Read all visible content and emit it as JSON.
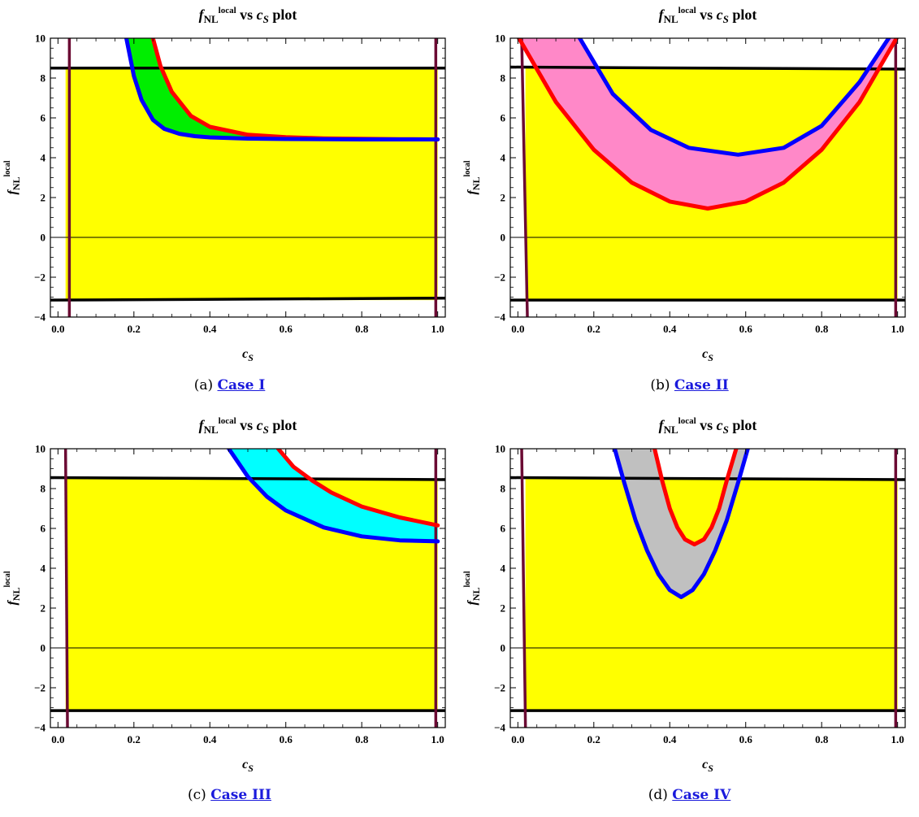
{
  "chart_data": [
    {
      "type": "line",
      "title": "f_NL^local vs c_S plot",
      "xlabel": "c_S",
      "ylabel": "f_NL^local",
      "xlim": [
        -0.02,
        1.02
      ],
      "ylim": [
        -4,
        10
      ],
      "x_ticks": [
        "0.0",
        "0.2",
        "0.4",
        "0.6",
        "0.8",
        "1.0"
      ],
      "y_ticks": [
        "−4",
        "−2",
        "0",
        "2",
        "4",
        "6",
        "8",
        "10"
      ],
      "allowed_region": {
        "x": [
          0.02,
          1.0
        ],
        "y": [
          -3.15,
          8.5
        ],
        "color": "#ffff00"
      },
      "horizontal_bounds": [
        {
          "x": [
            -0.02,
            1.02
          ],
          "y": [
            8.5,
            8.5
          ]
        },
        {
          "x": [
            -0.02,
            1.02
          ],
          "y": [
            -3.15,
            -3.05
          ]
        }
      ],
      "vertical_bounds": [
        {
          "x": [
            0.03,
            0.03
          ],
          "y": [
            -4,
            10
          ]
        },
        {
          "x": [
            0.995,
            0.995
          ],
          "y": [
            -4,
            10
          ]
        }
      ],
      "band_color": "#00ee00",
      "series": [
        {
          "color": "#ff0000",
          "x": [
            0.25,
            0.27,
            0.3,
            0.35,
            0.4,
            0.5,
            0.6,
            0.7,
            0.8,
            0.9,
            1.0
          ],
          "y": [
            10,
            8.6,
            7.3,
            6.1,
            5.55,
            5.15,
            5.03,
            4.97,
            4.95,
            4.93,
            4.92
          ]
        },
        {
          "color": "#0000ff",
          "x": [
            0.18,
            0.2,
            0.22,
            0.25,
            0.28,
            0.32,
            0.36,
            0.4,
            0.5,
            0.6,
            0.8,
            1.0
          ],
          "y": [
            10,
            8.1,
            6.9,
            5.9,
            5.45,
            5.2,
            5.08,
            5.02,
            4.96,
            4.94,
            4.92,
            4.92
          ]
        }
      ]
    },
    {
      "type": "line",
      "title": "f_NL^local vs c_S plot",
      "xlabel": "c_S",
      "ylabel": "f_NL^local",
      "xlim": [
        -0.02,
        1.02
      ],
      "ylim": [
        -4,
        10
      ],
      "x_ticks": [
        "0.0",
        "0.2",
        "0.4",
        "0.6",
        "0.8",
        "1.0"
      ],
      "y_ticks": [
        "−4",
        "−2",
        "0",
        "2",
        "4",
        "6",
        "8",
        "10"
      ],
      "allowed_region": {
        "x": [
          0.02,
          1.0
        ],
        "y": [
          -3.15,
          8.5
        ],
        "color": "#ffff00"
      },
      "horizontal_bounds": [
        {
          "x": [
            -0.02,
            1.02
          ],
          "y": [
            8.55,
            8.45
          ]
        },
        {
          "x": [
            -0.02,
            1.02
          ],
          "y": [
            -3.15,
            -3.15
          ]
        }
      ],
      "vertical_bounds": [
        {
          "x": [
            0.01,
            0.025
          ],
          "y": [
            10,
            -4
          ]
        },
        {
          "x": [
            0.995,
            0.995
          ],
          "y": [
            -4,
            10
          ]
        }
      ],
      "band_color": "#ff88c8",
      "series": [
        {
          "color": "#ff0000",
          "x": [
            0.0,
            0.1,
            0.2,
            0.3,
            0.4,
            0.5,
            0.6,
            0.7,
            0.8,
            0.9,
            1.0
          ],
          "y": [
            10.1,
            6.8,
            4.4,
            2.75,
            1.8,
            1.45,
            1.8,
            2.75,
            4.4,
            6.8,
            10.1
          ]
        },
        {
          "color": "#0000ff",
          "x": [
            0.16,
            0.25,
            0.35,
            0.45,
            0.58,
            0.7,
            0.8,
            0.9,
            0.98
          ],
          "y": [
            10.1,
            7.2,
            5.4,
            4.5,
            4.15,
            4.5,
            5.6,
            7.8,
            10.1
          ]
        }
      ]
    },
    {
      "type": "line",
      "title": "f_NL^local vs c_S plot",
      "xlabel": "c_S",
      "ylabel": "f_NL^local",
      "xlim": [
        -0.02,
        1.02
      ],
      "ylim": [
        -4,
        10
      ],
      "x_ticks": [
        "0.0",
        "0.2",
        "0.4",
        "0.6",
        "0.8",
        "1.0"
      ],
      "y_ticks": [
        "−4",
        "−2",
        "0",
        "2",
        "4",
        "6",
        "8",
        "10"
      ],
      "allowed_region": {
        "x": [
          0.02,
          1.0
        ],
        "y": [
          -3.15,
          8.5
        ],
        "color": "#ffff00"
      },
      "horizontal_bounds": [
        {
          "x": [
            -0.02,
            1.02
          ],
          "y": [
            8.55,
            8.45
          ]
        },
        {
          "x": [
            -0.02,
            1.02
          ],
          "y": [
            -3.15,
            -3.15
          ]
        }
      ],
      "vertical_bounds": [
        {
          "x": [
            0.02,
            0.025
          ],
          "y": [
            10,
            -4
          ]
        },
        {
          "x": [
            0.995,
            0.995
          ],
          "y": [
            -4,
            10
          ]
        }
      ],
      "band_color": "#00ffff",
      "series": [
        {
          "color": "#ff0000",
          "x": [
            0.58,
            0.62,
            0.67,
            0.72,
            0.8,
            0.9,
            1.0
          ],
          "y": [
            10,
            9.1,
            8.4,
            7.8,
            7.1,
            6.55,
            6.15
          ]
        },
        {
          "color": "#0000ff",
          "x": [
            0.45,
            0.5,
            0.55,
            0.6,
            0.7,
            0.8,
            0.9,
            1.0
          ],
          "y": [
            10,
            8.6,
            7.6,
            6.9,
            6.05,
            5.6,
            5.4,
            5.35
          ]
        }
      ]
    },
    {
      "type": "line",
      "title": "f_NL^local vs c_S plot",
      "xlabel": "c_S",
      "ylabel": "f_NL^local",
      "xlim": [
        -0.02,
        1.02
      ],
      "ylim": [
        -4,
        10
      ],
      "x_ticks": [
        "0.0",
        "0.2",
        "0.4",
        "0.6",
        "0.8",
        "1.0"
      ],
      "y_ticks": [
        "−4",
        "−2",
        "0",
        "2",
        "4",
        "6",
        "8",
        "10"
      ],
      "allowed_region": {
        "x": [
          0.02,
          1.0
        ],
        "y": [
          -3.15,
          8.5
        ],
        "color": "#ffff00"
      },
      "horizontal_bounds": [
        {
          "x": [
            -0.02,
            1.02
          ],
          "y": [
            8.55,
            8.45
          ]
        },
        {
          "x": [
            -0.02,
            1.02
          ],
          "y": [
            -3.15,
            -3.15
          ]
        }
      ],
      "vertical_bounds": [
        {
          "x": [
            0.01,
            0.02
          ],
          "y": [
            10,
            -4
          ]
        },
        {
          "x": [
            0.995,
            0.995
          ],
          "y": [
            -4,
            10
          ]
        }
      ],
      "band_color": "#c0c0c0",
      "series": [
        {
          "color": "#ff0000",
          "x": [
            0.36,
            0.38,
            0.4,
            0.42,
            0.44,
            0.465,
            0.49,
            0.51,
            0.53,
            0.55,
            0.575
          ],
          "y": [
            10,
            8.4,
            7.0,
            6.05,
            5.45,
            5.2,
            5.45,
            6.05,
            7.0,
            8.4,
            10
          ]
        },
        {
          "color": "#0000ff",
          "x": [
            0.255,
            0.28,
            0.31,
            0.34,
            0.37,
            0.4,
            0.43,
            0.46,
            0.49,
            0.52,
            0.55,
            0.58,
            0.61,
            0.625
          ],
          "y": [
            10,
            8.3,
            6.4,
            4.9,
            3.7,
            2.9,
            2.55,
            2.9,
            3.7,
            4.9,
            6.4,
            8.3,
            10.3,
            10.6
          ]
        }
      ]
    }
  ],
  "captions": [
    {
      "prefix": "(a)",
      "link": "Case I"
    },
    {
      "prefix": "(b)",
      "link": "Case II"
    },
    {
      "prefix": "(c)",
      "link": "Case III"
    },
    {
      "prefix": "(d)",
      "link": "Case IV"
    }
  ]
}
